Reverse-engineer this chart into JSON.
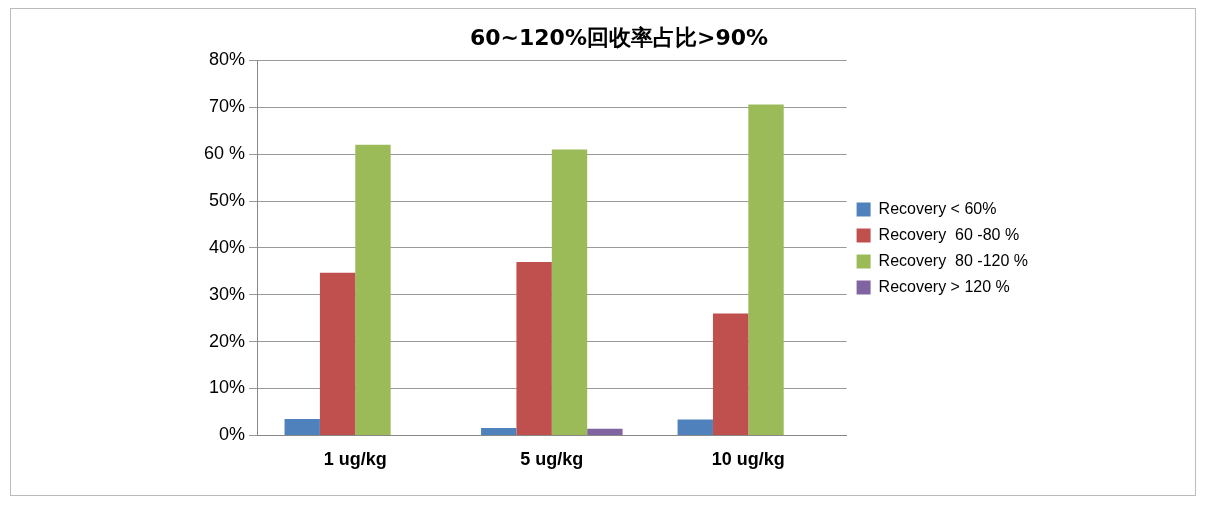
{
  "chart_data": {
    "type": "bar",
    "title": "60~120%回收率占比>90%",
    "categories": [
      "1 ug/kg",
      "5 ug/kg",
      "10 ug/kg"
    ],
    "series": [
      {
        "name": "Recovery < 60%",
        "color": "#4f81bd",
        "values": [
          3.5,
          1.6,
          3.4
        ]
      },
      {
        "name": "Recovery  60 -80 %",
        "color": "#c0504d",
        "values": [
          34.7,
          37,
          26
        ]
      },
      {
        "name": "Recovery  80 -120 %",
        "color": "#9bbb59",
        "values": [
          62,
          61,
          70.6
        ]
      },
      {
        "name": "Recovery > 120 %",
        "color": "#8064a2",
        "values": [
          0,
          1.4,
          0
        ]
      }
    ],
    "ylim": [
      0,
      80
    ],
    "yticks": [
      {
        "value": 0,
        "label": "0%"
      },
      {
        "value": 10,
        "label": "10%"
      },
      {
        "value": 20,
        "label": "20%"
      },
      {
        "value": 30,
        "label": "30%"
      },
      {
        "value": 40,
        "label": "40%"
      },
      {
        "value": 50,
        "label": "50%"
      },
      {
        "value": 60,
        "label": "60 %"
      },
      {
        "value": 70,
        "label": "70%"
      },
      {
        "value": 80,
        "label": "80%"
      }
    ],
    "grid": "y",
    "legend": "right"
  }
}
